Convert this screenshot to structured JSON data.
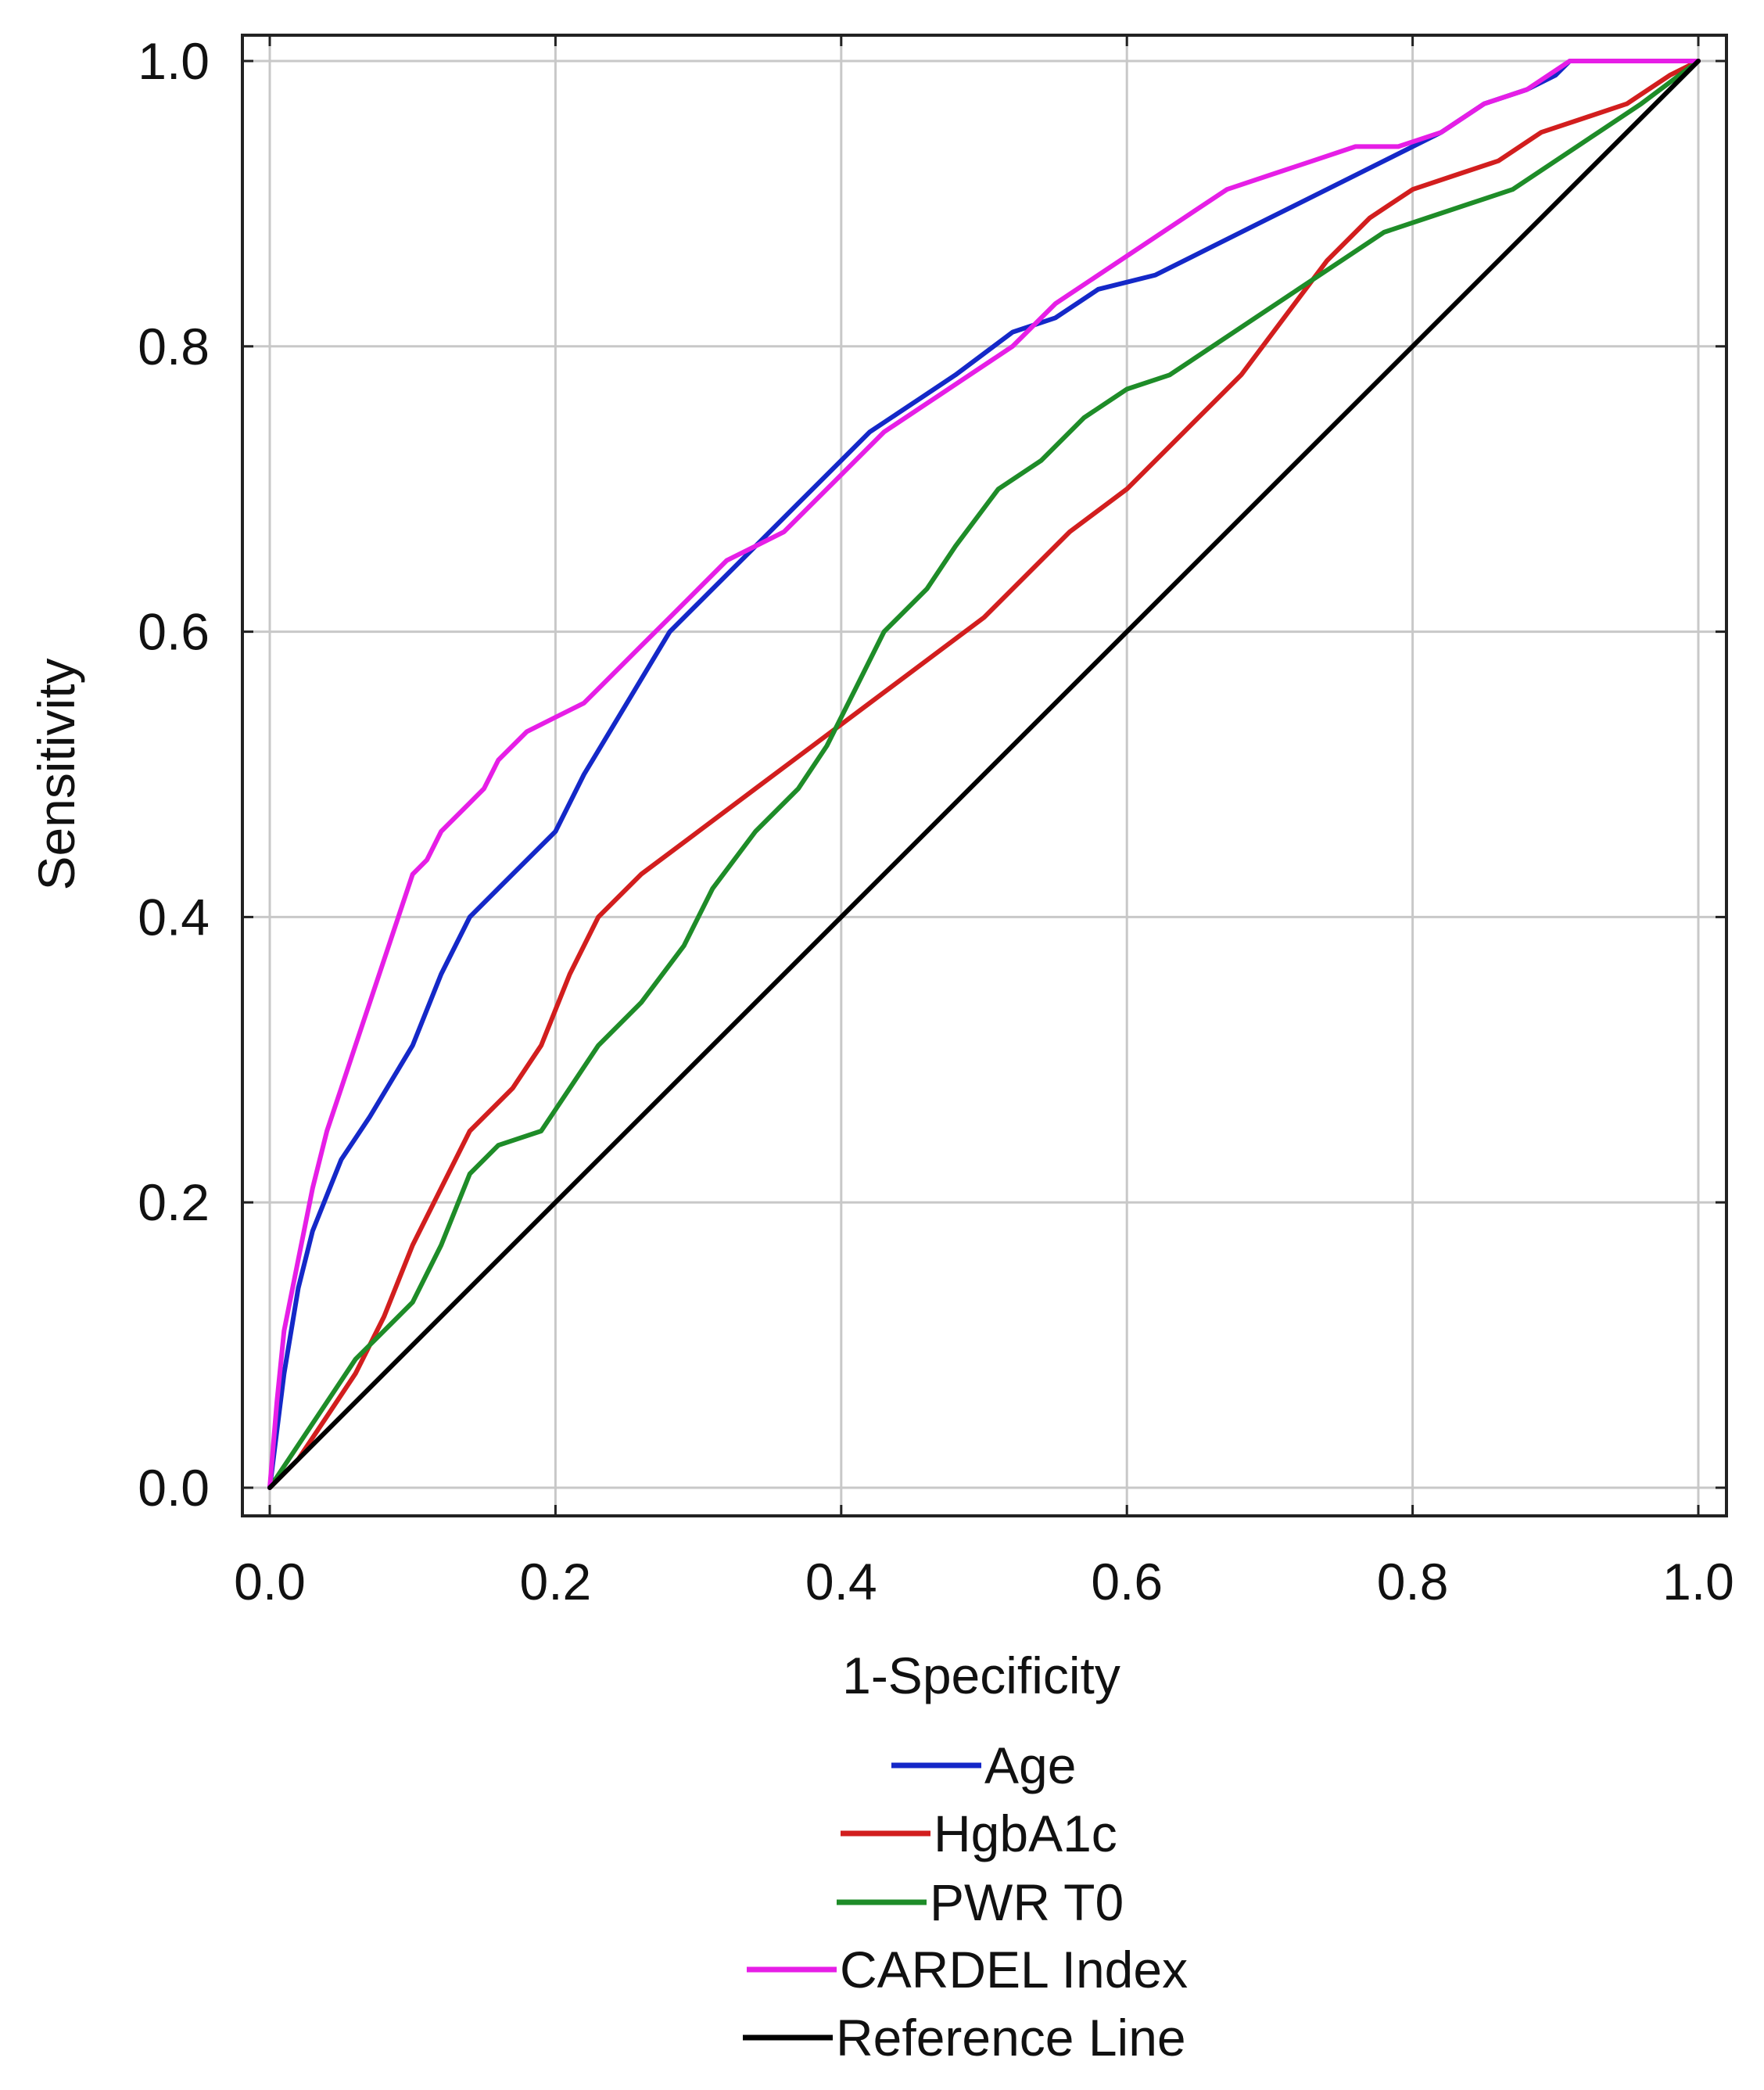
{
  "chart_data": {
    "type": "line",
    "title": "",
    "xlabel": "1-Specificity",
    "ylabel": "Sensitivity",
    "xlim": [
      0,
      1
    ],
    "ylim": [
      0,
      1
    ],
    "grid": true,
    "legend_position": "bottom",
    "x_ticks": [
      0,
      0.2,
      0.4,
      0.6,
      0.8,
      1.0
    ],
    "y_ticks": [
      0,
      0.2,
      0.4,
      0.6,
      0.8,
      1.0
    ],
    "x_tick_labels": [
      "0.0",
      "0.2",
      "0.4",
      "0.6",
      "0.8",
      "1.0"
    ],
    "y_tick_labels": [
      "0.0",
      "0.2",
      "0.4",
      "0.6",
      "0.8",
      "1.0"
    ],
    "series": [
      {
        "name": "Age",
        "color": "#1428c8",
        "x": [
          0,
          0.01,
          0.02,
          0.03,
          0.05,
          0.07,
          0.1,
          0.12,
          0.14,
          0.16,
          0.18,
          0.2,
          0.22,
          0.25,
          0.28,
          0.31,
          0.34,
          0.37,
          0.4,
          0.42,
          0.45,
          0.48,
          0.52,
          0.55,
          0.58,
          0.62,
          0.66,
          0.7,
          0.74,
          0.78,
          0.82,
          0.85,
          0.88,
          0.9,
          0.91,
          1.0
        ],
        "y": [
          0,
          0.08,
          0.14,
          0.18,
          0.23,
          0.26,
          0.31,
          0.36,
          0.4,
          0.42,
          0.44,
          0.46,
          0.5,
          0.55,
          0.6,
          0.63,
          0.66,
          0.69,
          0.72,
          0.74,
          0.76,
          0.78,
          0.81,
          0.82,
          0.84,
          0.85,
          0.87,
          0.89,
          0.91,
          0.93,
          0.95,
          0.97,
          0.98,
          0.99,
          1.0,
          1.0
        ]
      },
      {
        "name": "HgbA1c",
        "color": "#d21e1e",
        "x": [
          0,
          0.02,
          0.04,
          0.06,
          0.08,
          0.1,
          0.12,
          0.14,
          0.17,
          0.19,
          0.21,
          0.23,
          0.26,
          0.3,
          0.34,
          0.38,
          0.42,
          0.46,
          0.5,
          0.53,
          0.56,
          0.6,
          0.64,
          0.68,
          0.71,
          0.74,
          0.77,
          0.8,
          0.83,
          0.86,
          0.89,
          0.92,
          0.95,
          0.98,
          1.0
        ],
        "y": [
          0,
          0.02,
          0.05,
          0.08,
          0.12,
          0.17,
          0.21,
          0.25,
          0.28,
          0.31,
          0.36,
          0.4,
          0.43,
          0.46,
          0.49,
          0.52,
          0.55,
          0.58,
          0.61,
          0.64,
          0.67,
          0.7,
          0.74,
          0.78,
          0.82,
          0.86,
          0.89,
          0.91,
          0.92,
          0.93,
          0.95,
          0.96,
          0.97,
          0.99,
          1.0
        ]
      },
      {
        "name": "PWR T0",
        "color": "#1e8c28",
        "x": [
          0,
          0.02,
          0.04,
          0.06,
          0.08,
          0.1,
          0.12,
          0.14,
          0.16,
          0.19,
          0.21,
          0.23,
          0.26,
          0.29,
          0.31,
          0.34,
          0.37,
          0.39,
          0.41,
          0.43,
          0.46,
          0.48,
          0.51,
          0.54,
          0.57,
          0.6,
          0.63,
          0.66,
          0.69,
          0.72,
          0.75,
          0.78,
          0.81,
          0.84,
          0.87,
          0.9,
          0.93,
          0.96,
          1.0
        ],
        "y": [
          0,
          0.03,
          0.06,
          0.09,
          0.11,
          0.13,
          0.17,
          0.22,
          0.24,
          0.25,
          0.28,
          0.31,
          0.34,
          0.38,
          0.42,
          0.46,
          0.49,
          0.52,
          0.56,
          0.6,
          0.63,
          0.66,
          0.7,
          0.72,
          0.75,
          0.77,
          0.78,
          0.8,
          0.82,
          0.84,
          0.86,
          0.88,
          0.89,
          0.9,
          0.91,
          0.93,
          0.95,
          0.97,
          1.0
        ]
      },
      {
        "name": "CARDEL Index",
        "color": "#e61ee6",
        "x": [
          0,
          0.005,
          0.01,
          0.02,
          0.03,
          0.04,
          0.05,
          0.06,
          0.07,
          0.08,
          0.09,
          0.1,
          0.11,
          0.12,
          0.13,
          0.14,
          0.15,
          0.16,
          0.17,
          0.18,
          0.2,
          0.22,
          0.24,
          0.26,
          0.28,
          0.3,
          0.32,
          0.34,
          0.36,
          0.38,
          0.4,
          0.43,
          0.46,
          0.49,
          0.52,
          0.55,
          0.58,
          0.61,
          0.64,
          0.67,
          0.7,
          0.73,
          0.76,
          0.79,
          0.82,
          0.85,
          0.88,
          0.91,
          0.95,
          1.0
        ],
        "y": [
          0,
          0.06,
          0.11,
          0.16,
          0.21,
          0.25,
          0.28,
          0.31,
          0.34,
          0.37,
          0.4,
          0.43,
          0.44,
          0.46,
          0.47,
          0.48,
          0.49,
          0.51,
          0.52,
          0.53,
          0.54,
          0.55,
          0.57,
          0.59,
          0.61,
          0.63,
          0.65,
          0.66,
          0.67,
          0.69,
          0.71,
          0.74,
          0.76,
          0.78,
          0.8,
          0.83,
          0.85,
          0.87,
          0.89,
          0.91,
          0.92,
          0.93,
          0.94,
          0.94,
          0.95,
          0.97,
          0.98,
          1.0,
          1.0,
          1.0
        ]
      },
      {
        "name": "Reference Line",
        "color": "#000000",
        "x": [
          0,
          1
        ],
        "y": [
          0,
          1
        ]
      }
    ]
  }
}
